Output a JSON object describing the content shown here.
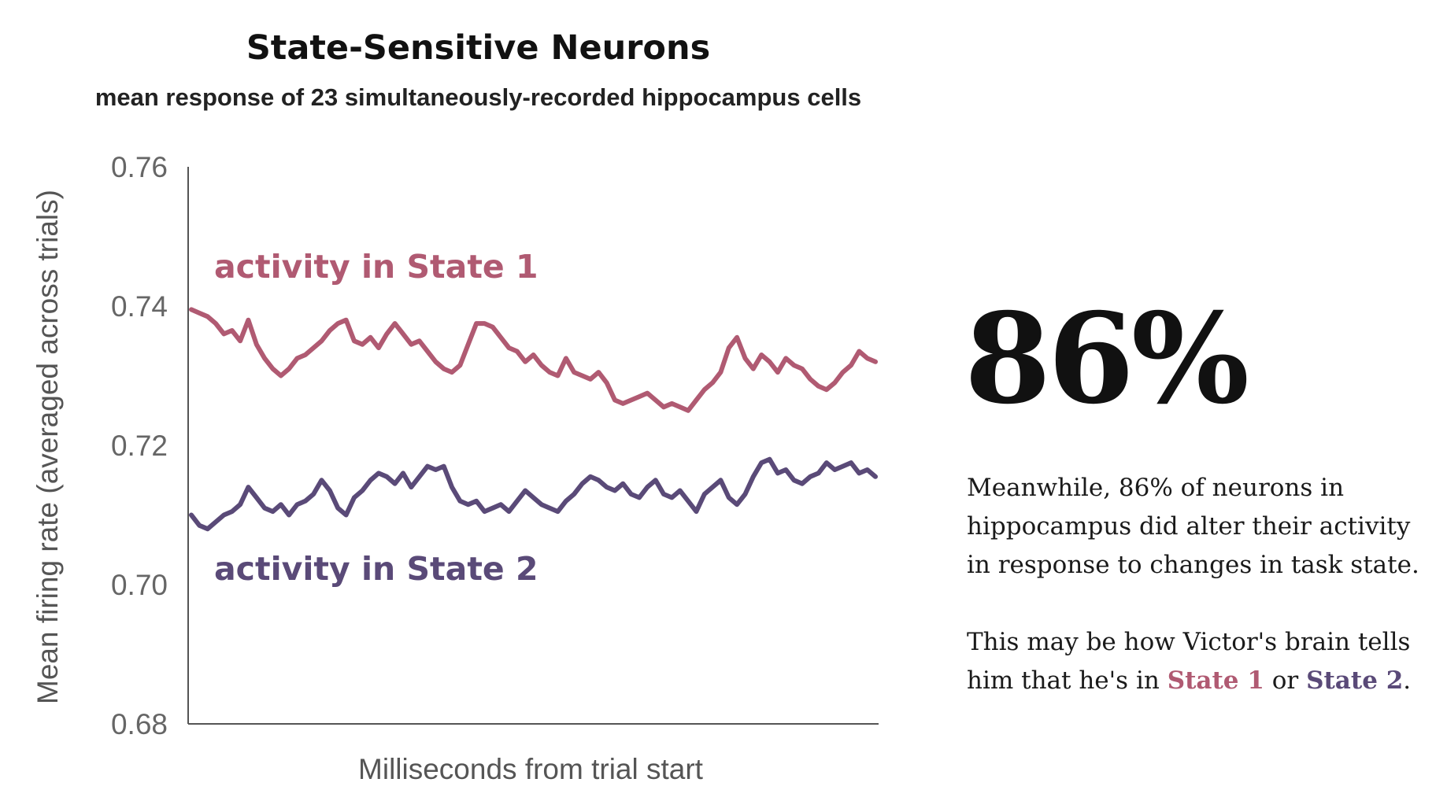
{
  "chart_data": {
    "type": "line",
    "title": "State-Sensitive Neurons",
    "subtitle": "mean response of 23 simultaneously-recorded hippocampus cells",
    "xlabel": "Milliseconds from trial start",
    "ylabel": "Mean firing rate (averaged across trials)",
    "ylim": [
      0.68,
      0.76
    ],
    "yticks": [
      "0.76",
      "0.74",
      "0.72",
      "0.70",
      "0.68"
    ],
    "grid": false,
    "series": [
      {
        "name": "activity in State 1",
        "color": "#b05a72",
        "values": [
          0.7395,
          0.739,
          0.7385,
          0.7375,
          0.736,
          0.7365,
          0.735,
          0.738,
          0.7345,
          0.7325,
          0.731,
          0.73,
          0.731,
          0.7325,
          0.733,
          0.734,
          0.735,
          0.7365,
          0.7375,
          0.738,
          0.735,
          0.7345,
          0.7355,
          0.734,
          0.736,
          0.7375,
          0.736,
          0.7345,
          0.735,
          0.7335,
          0.732,
          0.731,
          0.7305,
          0.7315,
          0.7345,
          0.7375,
          0.7375,
          0.737,
          0.7355,
          0.734,
          0.7335,
          0.732,
          0.733,
          0.7315,
          0.7305,
          0.73,
          0.7325,
          0.7305,
          0.73,
          0.7295,
          0.7305,
          0.729,
          0.7265,
          0.726,
          0.7265,
          0.727,
          0.7275,
          0.7265,
          0.7255,
          0.726,
          0.7255,
          0.725,
          0.7265,
          0.728,
          0.729,
          0.7305,
          0.734,
          0.7355,
          0.7325,
          0.731,
          0.733,
          0.732,
          0.7305,
          0.7325,
          0.7315,
          0.731,
          0.7295,
          0.7285,
          0.728,
          0.729,
          0.7305,
          0.7315,
          0.7335,
          0.7325,
          0.732
        ]
      },
      {
        "name": "activity in State 2",
        "color": "#5a4a78",
        "values": [
          0.71,
          0.7085,
          0.708,
          0.709,
          0.71,
          0.7105,
          0.7115,
          0.714,
          0.7125,
          0.711,
          0.7105,
          0.7115,
          0.71,
          0.7115,
          0.712,
          0.713,
          0.715,
          0.7135,
          0.711,
          0.71,
          0.7125,
          0.7135,
          0.715,
          0.716,
          0.7155,
          0.7145,
          0.716,
          0.714,
          0.7155,
          0.717,
          0.7165,
          0.717,
          0.714,
          0.712,
          0.7115,
          0.712,
          0.7105,
          0.711,
          0.7115,
          0.7105,
          0.712,
          0.7135,
          0.7125,
          0.7115,
          0.711,
          0.7105,
          0.712,
          0.713,
          0.7145,
          0.7155,
          0.715,
          0.714,
          0.7135,
          0.7145,
          0.713,
          0.7125,
          0.714,
          0.715,
          0.713,
          0.7125,
          0.7135,
          0.712,
          0.7105,
          0.713,
          0.714,
          0.715,
          0.7125,
          0.7115,
          0.713,
          0.7155,
          0.7175,
          0.718,
          0.716,
          0.7165,
          0.715,
          0.7145,
          0.7155,
          0.716,
          0.7175,
          0.7165,
          0.717,
          0.7175,
          0.716,
          0.7165,
          0.7155
        ]
      }
    ]
  },
  "panel": {
    "big_stat": "86%",
    "paragraph1": "Meanwhile, 86% of neurons in hippocampus did alter their activity in response to changes in task state.",
    "p2_before": "This may be how Victor's brain tells him that he's in ",
    "p2_state1": "State 1",
    "p2_mid": " or ",
    "p2_state2": "State 2",
    "p2_end": "."
  }
}
